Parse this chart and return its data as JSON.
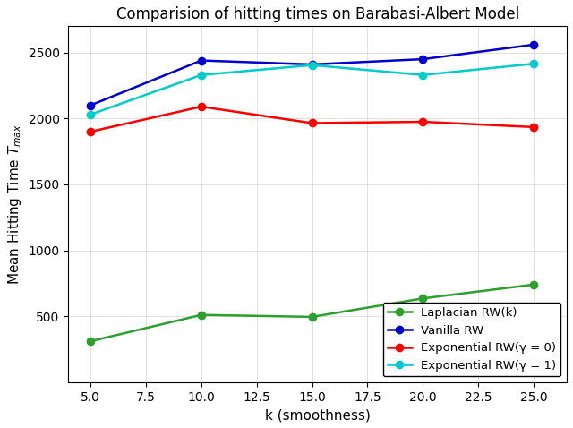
{
  "title": "Comparision of hitting times on Barabasi-Albert Model",
  "xlabel": "k (smoothness)",
  "ylabel": "Mean Hitting Time $T_{max}$",
  "x": [
    5.0,
    10.0,
    15.0,
    20.0,
    25.0
  ],
  "series": [
    {
      "label": "Laplacian RW(k)",
      "color": "#2ca02c",
      "values": [
        310,
        510,
        495,
        635,
        740
      ]
    },
    {
      "label": "Vanilla RW",
      "color": "#0000cc",
      "values": [
        2100,
        2440,
        2410,
        2450,
        2560
      ]
    },
    {
      "label": "Exponential RW(γ = 0)",
      "color": "#ff0000",
      "values": [
        1900,
        2090,
        1965,
        1975,
        1935
      ]
    },
    {
      "label": "Exponential RW(γ = 1)",
      "color": "#00cccc",
      "values": [
        2030,
        2330,
        2405,
        2330,
        2415
      ]
    }
  ],
  "xlim": [
    4.0,
    26.5
  ],
  "ylim": [
    0,
    2700
  ],
  "xticks": [
    5.0,
    7.5,
    10.0,
    12.5,
    15.0,
    17.5,
    20.0,
    22.5,
    25.0
  ],
  "yticks": [
    500,
    1000,
    1500,
    2000,
    2500
  ],
  "legend_loc": "lower right",
  "title_fontsize": 12,
  "label_fontsize": 11,
  "tick_fontsize": 10,
  "marker": "o",
  "markersize": 6,
  "linewidth": 1.8,
  "background_color": "#ffffff"
}
